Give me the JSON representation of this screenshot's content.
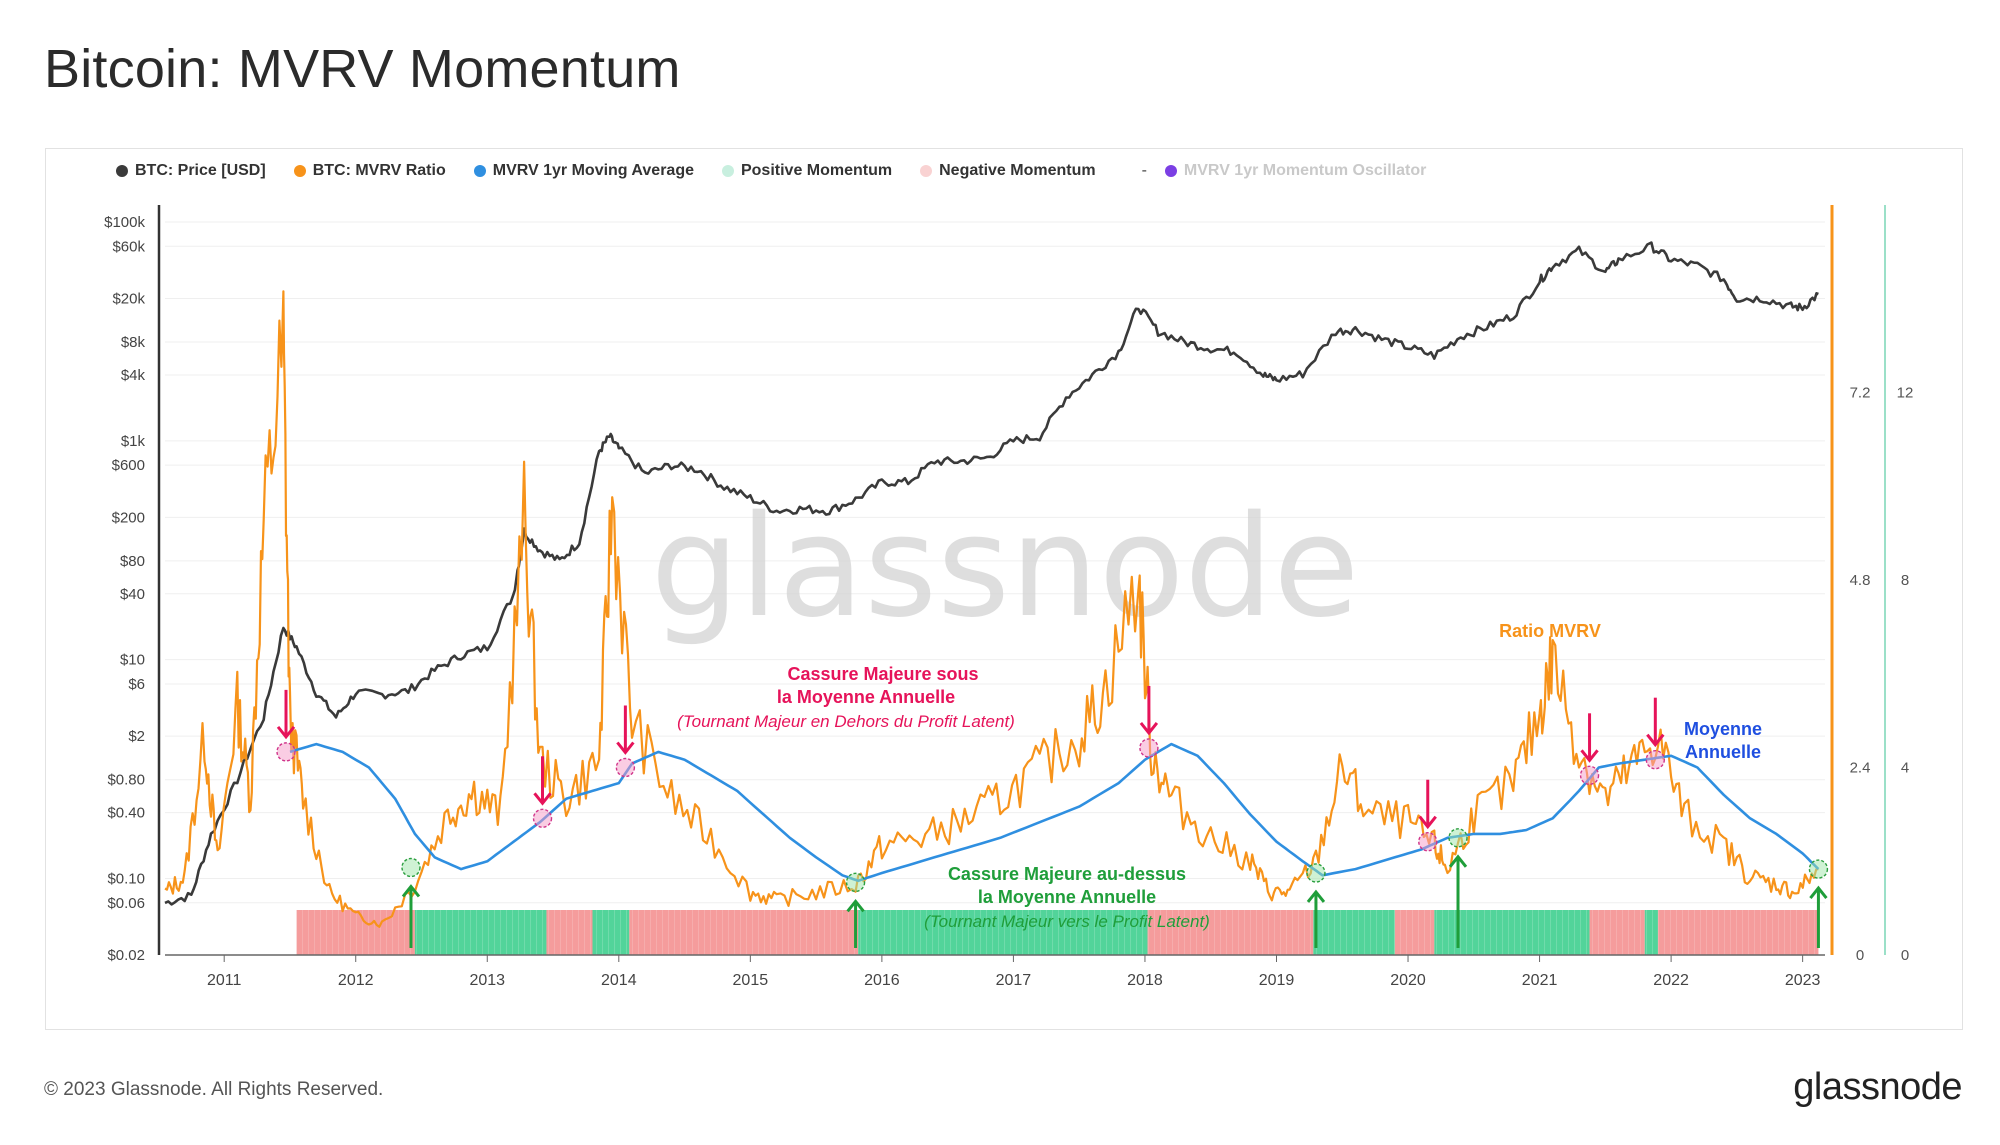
{
  "title": "Bitcoin: MVRV Momentum",
  "footer": "© 2023 Glassnode. All Rights Reserved.",
  "brand": "glassnode",
  "watermark": "glassnode",
  "legend": [
    {
      "label": "BTC: Price [USD]",
      "color": "#3a3a3a",
      "faded": false
    },
    {
      "label": "BTC: MVRV Ratio",
      "color": "#f7931a",
      "faded": false
    },
    {
      "label": "MVRV 1yr Moving Average",
      "color": "#2f8fe0",
      "faded": false
    },
    {
      "label": "Positive Momentum",
      "color": "#c8efdf",
      "faded": false
    },
    {
      "label": "Negative Momentum",
      "color": "#f9d2d2",
      "faded": false
    },
    {
      "label": "MVRV 1yr Momentum Oscillator",
      "color": "#7b3fe4",
      "faded": true
    }
  ],
  "legend_separator": "-",
  "colors": {
    "price": "#3a3a3a",
    "mvrv": "#f7931a",
    "ma": "#2f8fe0",
    "positive": "#52d49a",
    "negative": "#f59c9c",
    "oscillator_axis": "#9be0c8",
    "bear_annotation": "#e6135a",
    "bull_annotation": "#1f9e3a",
    "ma_label": "#1f4fe0"
  },
  "chart_data": {
    "type": "line",
    "title": "Bitcoin: MVRV Momentum",
    "x_ticks": [
      "2011",
      "2012",
      "2013",
      "2014",
      "2015",
      "2016",
      "2017",
      "2018",
      "2019",
      "2020",
      "2021",
      "2022",
      "2023"
    ],
    "x_range": [
      2010.55,
      2023.17
    ],
    "price_axis": {
      "scale": "log",
      "range": [
        0.02,
        100000
      ],
      "ticks": [
        "$100k",
        "$60k",
        "$20k",
        "$8k",
        "$4k",
        "$1k",
        "$600",
        "$200",
        "$80",
        "$40",
        "$10",
        "$6",
        "$2",
        "$0.80",
        "$0.40",
        "$0.10",
        "$0.06",
        "$0.02"
      ],
      "tick_values": [
        100000,
        60000,
        20000,
        8000,
        4000,
        1000,
        600,
        200,
        80,
        40,
        10,
        6,
        2,
        0.8,
        0.4,
        0.1,
        0.06,
        0.02
      ]
    },
    "mvrv_axis": {
      "range": [
        0,
        9.6
      ],
      "ticks": [
        "7.2",
        "4.8",
        "2.4",
        "0"
      ],
      "tick_values": [
        7.2,
        4.8,
        2.4,
        0
      ]
    },
    "oscillator_axis": {
      "range": [
        0,
        16
      ],
      "ticks": [
        "12",
        "8",
        "4",
        "0"
      ],
      "tick_values": [
        12,
        8,
        4,
        0
      ]
    },
    "series": [
      {
        "name": "BTC: Price [USD]",
        "x": [
          2010.55,
          2010.75,
          2010.9,
          2011.1,
          2011.3,
          2011.45,
          2011.55,
          2011.7,
          2011.85,
          2012.0,
          2012.2,
          2012.4,
          2012.6,
          2012.8,
          2013.0,
          2013.2,
          2013.28,
          2013.4,
          2013.55,
          2013.7,
          2013.85,
          2013.93,
          2014.0,
          2014.2,
          2014.4,
          2014.6,
          2014.8,
          2015.0,
          2015.2,
          2015.4,
          2015.6,
          2015.8,
          2016.0,
          2016.2,
          2016.4,
          2016.6,
          2016.8,
          2017.0,
          2017.2,
          2017.4,
          2017.6,
          2017.8,
          2017.95,
          2018.1,
          2018.3,
          2018.5,
          2018.7,
          2018.9,
          2019.0,
          2019.2,
          2019.45,
          2019.6,
          2019.8,
          2020.0,
          2020.2,
          2020.4,
          2020.6,
          2020.8,
          2021.0,
          2021.1,
          2021.3,
          2021.5,
          2021.6,
          2021.85,
          2022.0,
          2022.2,
          2022.4,
          2022.5,
          2022.7,
          2022.9,
          2023.0,
          2023.12
        ],
        "values": [
          0.06,
          0.07,
          0.25,
          0.8,
          3,
          20,
          13,
          5,
          3,
          5,
          4.8,
          5.2,
          8,
          11,
          13,
          40,
          150,
          100,
          80,
          120,
          800,
          1100,
          850,
          500,
          600,
          550,
          380,
          300,
          230,
          240,
          230,
          290,
          420,
          420,
          650,
          650,
          700,
          1000,
          1100,
          2500,
          4000,
          6500,
          17000,
          10000,
          8000,
          7000,
          6500,
          4000,
          3600,
          4100,
          10000,
          10500,
          8500,
          7200,
          6000,
          9000,
          11000,
          14000,
          29000,
          40000,
          55000,
          35000,
          45000,
          60000,
          45000,
          40000,
          30000,
          20000,
          20000,
          17000,
          16500,
          22000
        ]
      },
      {
        "name": "BTC: MVRV Ratio",
        "x": [
          2010.55,
          2010.7,
          2010.85,
          2010.95,
          2011.1,
          2011.2,
          2011.3,
          2011.45,
          2011.5,
          2011.6,
          2011.8,
          2012.0,
          2012.2,
          2012.45,
          2012.7,
          2012.9,
          2013.1,
          2013.28,
          2013.4,
          2013.6,
          2013.85,
          2013.95,
          2014.1,
          2014.4,
          2014.7,
          2015.0,
          2015.2,
          2015.5,
          2015.8,
          2016.0,
          2016.3,
          2016.6,
          2016.9,
          2017.2,
          2017.5,
          2017.7,
          2017.95,
          2018.05,
          2018.2,
          2018.5,
          2018.8,
          2018.95,
          2019.1,
          2019.3,
          2019.5,
          2019.7,
          2020.0,
          2020.2,
          2020.3,
          2020.5,
          2020.8,
          2021.0,
          2021.1,
          2021.3,
          2021.5,
          2021.7,
          2021.9,
          2022.1,
          2022.4,
          2022.6,
          2022.8,
          2022.95,
          2023.12
        ],
        "values": [
          0.8,
          1.0,
          2.8,
          1.2,
          3.2,
          2.0,
          5.5,
          7.8,
          3.0,
          2.0,
          0.8,
          0.5,
          0.4,
          0.9,
          1.8,
          2.1,
          1.8,
          5.6,
          2.5,
          2.0,
          2.5,
          5.8,
          3.0,
          2.0,
          1.5,
          0.8,
          0.7,
          0.8,
          0.9,
          1.4,
          1.5,
          1.7,
          2.0,
          2.4,
          2.8,
          3.4,
          4.8,
          2.6,
          2.0,
          1.5,
          1.2,
          0.8,
          0.8,
          1.2,
          2.4,
          1.8,
          1.7,
          1.4,
          1.1,
          1.8,
          2.2,
          3.1,
          3.8,
          2.6,
          2.0,
          2.4,
          2.8,
          1.8,
          1.4,
          1.0,
          0.9,
          0.8,
          1.1
        ]
      },
      {
        "name": "MVRV 1yr Moving Average",
        "x": [
          2011.5,
          2011.7,
          2011.9,
          2012.1,
          2012.3,
          2012.45,
          2012.6,
          2012.8,
          2013.0,
          2013.2,
          2013.4,
          2013.6,
          2013.8,
          2014.0,
          2014.1,
          2014.3,
          2014.5,
          2014.7,
          2014.9,
          2015.1,
          2015.3,
          2015.5,
          2015.7,
          2015.82,
          2016.0,
          2016.3,
          2016.6,
          2016.9,
          2017.2,
          2017.5,
          2017.8,
          2018.0,
          2018.2,
          2018.4,
          2018.6,
          2018.8,
          2019.0,
          2019.2,
          2019.35,
          2019.6,
          2019.9,
          2020.1,
          2020.3,
          2020.5,
          2020.7,
          2020.9,
          2021.1,
          2021.3,
          2021.45,
          2021.6,
          2021.8,
          2022.0,
          2022.2,
          2022.4,
          2022.6,
          2022.8,
          2023.0,
          2023.12
        ],
        "values": [
          2.6,
          2.7,
          2.6,
          2.4,
          2.0,
          1.55,
          1.25,
          1.1,
          1.2,
          1.45,
          1.7,
          2.0,
          2.1,
          2.2,
          2.45,
          2.6,
          2.5,
          2.3,
          2.1,
          1.8,
          1.5,
          1.25,
          1.02,
          0.95,
          1.05,
          1.2,
          1.35,
          1.5,
          1.7,
          1.9,
          2.2,
          2.5,
          2.7,
          2.55,
          2.2,
          1.8,
          1.45,
          1.2,
          1.02,
          1.1,
          1.25,
          1.35,
          1.5,
          1.55,
          1.55,
          1.6,
          1.75,
          2.1,
          2.4,
          2.45,
          2.5,
          2.55,
          2.4,
          2.05,
          1.75,
          1.55,
          1.3,
          1.1
        ]
      }
    ],
    "momentum_bands": [
      {
        "start": 2011.55,
        "end": 2012.45,
        "sign": "negative"
      },
      {
        "start": 2012.45,
        "end": 2013.45,
        "sign": "positive"
      },
      {
        "start": 2013.45,
        "end": 2013.8,
        "sign": "negative"
      },
      {
        "start": 2013.8,
        "end": 2014.08,
        "sign": "positive"
      },
      {
        "start": 2014.08,
        "end": 2015.82,
        "sign": "negative"
      },
      {
        "start": 2015.82,
        "end": 2018.02,
        "sign": "positive"
      },
      {
        "start": 2018.02,
        "end": 2019.28,
        "sign": "negative"
      },
      {
        "start": 2019.28,
        "end": 2019.9,
        "sign": "positive"
      },
      {
        "start": 2019.9,
        "end": 2020.2,
        "sign": "negative"
      },
      {
        "start": 2020.2,
        "end": 2020.38,
        "sign": "positive"
      },
      {
        "start": 2020.38,
        "end": 2021.38,
        "sign": "positive"
      },
      {
        "start": 2021.38,
        "end": 2021.8,
        "sign": "negative"
      },
      {
        "start": 2021.8,
        "end": 2021.9,
        "sign": "positive"
      },
      {
        "start": 2021.9,
        "end": 2023.12,
        "sign": "negative"
      }
    ],
    "crossings": [
      {
        "x": 2011.47,
        "value": 2.6,
        "type": "bear"
      },
      {
        "x": 2012.42,
        "value": 1.12,
        "type": "bull"
      },
      {
        "x": 2013.42,
        "value": 1.75,
        "type": "bear"
      },
      {
        "x": 2014.05,
        "value": 2.4,
        "type": "bear"
      },
      {
        "x": 2015.8,
        "value": 0.93,
        "type": "bull"
      },
      {
        "x": 2018.03,
        "value": 2.65,
        "type": "bear"
      },
      {
        "x": 2019.3,
        "value": 1.05,
        "type": "bull"
      },
      {
        "x": 2020.15,
        "value": 1.45,
        "type": "bear"
      },
      {
        "x": 2020.38,
        "value": 1.5,
        "type": "bull"
      },
      {
        "x": 2021.38,
        "value": 2.3,
        "type": "bear"
      },
      {
        "x": 2021.88,
        "value": 2.5,
        "type": "bear"
      },
      {
        "x": 2023.12,
        "value": 1.1,
        "type": "bull"
      }
    ],
    "annotations": {
      "bear_title_1": "Cassure Majeure sous",
      "bear_title_2": "la Moyenne Annuelle",
      "bear_sub": "(Tournant Majeur en Dehors du Profit Latent)",
      "bull_title_1": "Cassure Majeure au-dessus",
      "bull_title_2": "la Moyenne Annuelle",
      "bull_sub": "(Tournant Majeur vers le Profit Latent)",
      "mvrv_label": "Ratio MVRV",
      "ma_label_1": "Moyenne",
      "ma_label_2": "Annuelle"
    }
  }
}
